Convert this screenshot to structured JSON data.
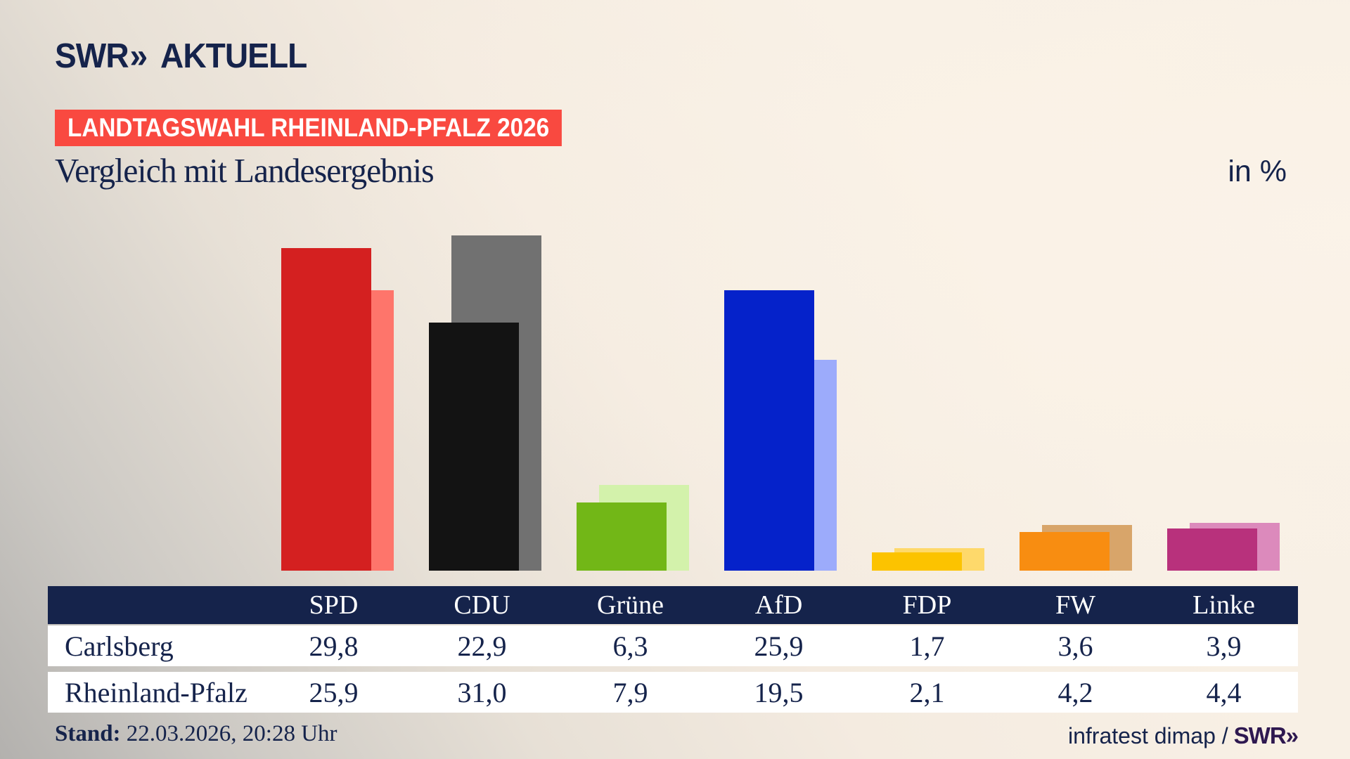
{
  "brand": {
    "swr": "SWR",
    "chevron": "»",
    "aktuell": "AKTUELL"
  },
  "banner": {
    "text": "LANDTAGSWAHL RHEINLAND-PFALZ 2026",
    "bg": "#f94940"
  },
  "title": "Vergleich mit Landesergebnis",
  "unit_label": "in %",
  "colors": {
    "navy": "#15234b",
    "banner_red": "#f94940",
    "footer_brand_purple": "#2e1850"
  },
  "chart_data": {
    "type": "bar",
    "title": "Vergleich mit Landesergebnis",
    "unit": "in %",
    "categories": [
      "SPD",
      "CDU",
      "Grüne",
      "AfD",
      "FDP",
      "FW",
      "Linke"
    ],
    "series": [
      {
        "name": "Carlsberg",
        "role": "foreground",
        "values": [
          29.8,
          22.9,
          6.3,
          25.9,
          1.7,
          3.6,
          3.9
        ],
        "colors": [
          "#d42020",
          "#131313",
          "#72b717",
          "#0522ca",
          "#fcc300",
          "#f88d11",
          "#b8317c"
        ]
      },
      {
        "name": "Rheinland-Pfalz",
        "role": "background-offset",
        "values": [
          25.9,
          31.0,
          7.9,
          19.5,
          2.1,
          4.2,
          4.4
        ],
        "colors": [
          "#fe756b",
          "#717171",
          "#d3f2ab",
          "#9cabfb",
          "#fed96b",
          "#d8a56a",
          "#dc8abc"
        ]
      }
    ],
    "ylim": [
      0,
      53
    ],
    "grid": false,
    "legend": "none",
    "value_labels": "table-below"
  },
  "table": {
    "columns": [
      "SPD",
      "CDU",
      "Grüne",
      "AfD",
      "FDP",
      "FW",
      "Linke"
    ],
    "rows": [
      {
        "label": "Carlsberg",
        "values": [
          "29,8",
          "22,9",
          "6,3",
          "25,9",
          "1,7",
          "3,6",
          "3,9"
        ]
      },
      {
        "label": "Rheinland-Pfalz",
        "values": [
          "25,9",
          "31,0",
          "7,9",
          "19,5",
          "2,1",
          "4,2",
          "4,4"
        ]
      }
    ]
  },
  "footer": {
    "stand_label": "Stand:",
    "stand_value": " 22.03.2026, 20:28 Uhr",
    "source": "infratest dimap /",
    "source_brand": "SWR»"
  }
}
